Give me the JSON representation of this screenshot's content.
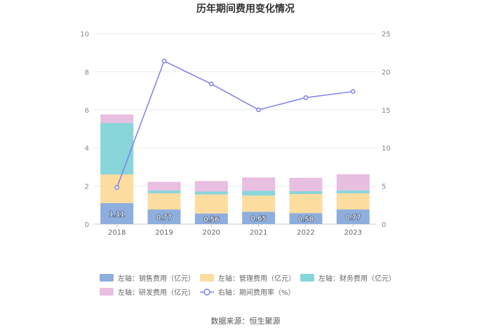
{
  "chart_data": {
    "type": "bar",
    "title": "历年期间费用变化情况",
    "categories": [
      "2018",
      "2019",
      "2020",
      "2021",
      "2022",
      "2023"
    ],
    "y_left": {
      "min": 0,
      "max": 10,
      "ticks": [
        "0",
        "2",
        "4",
        "6",
        "8",
        "10"
      ]
    },
    "y_right": {
      "min": 0,
      "max": 25,
      "ticks": [
        "0",
        "5",
        "10",
        "15",
        "20",
        "25"
      ]
    },
    "series": [
      {
        "name": "左轴：销售费用（亿元）",
        "kind": "bar",
        "axis": "left",
        "color": "#8eaedd",
        "values": [
          1.11,
          0.77,
          0.56,
          0.65,
          0.58,
          0.77
        ],
        "labels": [
          "1.11",
          "0.77",
          "0.56",
          "0.65",
          "0.58",
          "0.77"
        ]
      },
      {
        "name": "左轴：管理费用（亿元）",
        "kind": "bar",
        "axis": "left",
        "color": "#fddca0",
        "values": [
          1.5,
          0.85,
          1.0,
          0.85,
          1.0,
          0.85
        ]
      },
      {
        "name": "左轴：财务费用（亿元）",
        "kind": "bar",
        "axis": "left",
        "color": "#88d5da",
        "values": [
          2.7,
          0.15,
          0.15,
          0.25,
          0.15,
          0.15
        ]
      },
      {
        "name": "左轴：研发费用（亿元）",
        "kind": "bar",
        "axis": "left",
        "color": "#e8bfe0",
        "values": [
          0.45,
          0.45,
          0.55,
          0.7,
          0.7,
          0.85
        ]
      },
      {
        "name": "右轴：期间费用率（%）",
        "kind": "line",
        "axis": "right",
        "color": "#7d7ff0",
        "values": [
          4.8,
          21.4,
          18.4,
          15.0,
          16.6,
          17.4
        ]
      }
    ],
    "legend_position": "bottom",
    "grid": true
  },
  "footer": {
    "source": "数据来源：恒生聚源"
  }
}
